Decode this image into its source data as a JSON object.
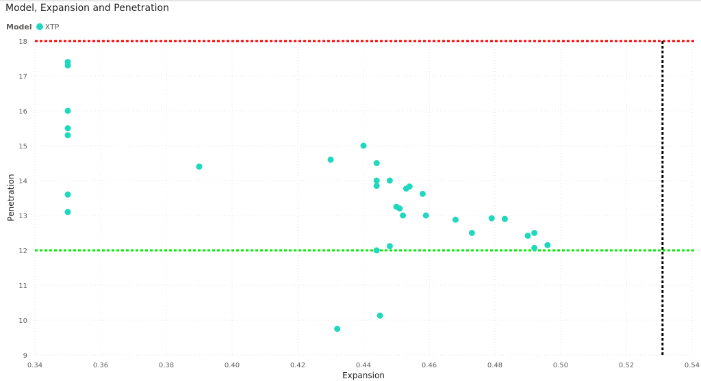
{
  "chart_data": {
    "type": "scatter",
    "title": "Model, Expansion and Penetration",
    "xlabel": "Expansion",
    "ylabel": "Penetration",
    "xlim": [
      0.34,
      0.54
    ],
    "ylim": [
      9,
      18
    ],
    "x_ticks": [
      "0.34",
      "0.36",
      "0.38",
      "0.40",
      "0.42",
      "0.44",
      "0.46",
      "0.48",
      "0.50",
      "0.52",
      "0.54"
    ],
    "y_ticks": [
      "9",
      "10",
      "11",
      "12",
      "13",
      "14",
      "15",
      "16",
      "17",
      "18"
    ],
    "legend": {
      "title": "Model",
      "entries": [
        "XTP"
      ],
      "placement": "top-left"
    },
    "grid": true,
    "series": [
      {
        "name": "XTP",
        "color": "#1fd8be",
        "points": [
          [
            0.35,
            17.4
          ],
          [
            0.35,
            17.3
          ],
          [
            0.35,
            16.0
          ],
          [
            0.35,
            15.5
          ],
          [
            0.35,
            15.3
          ],
          [
            0.35,
            13.6
          ],
          [
            0.35,
            13.1
          ],
          [
            0.39,
            14.4
          ],
          [
            0.43,
            14.6
          ],
          [
            0.432,
            9.75
          ],
          [
            0.44,
            15.0
          ],
          [
            0.444,
            14.5
          ],
          [
            0.444,
            14.0
          ],
          [
            0.444,
            13.85
          ],
          [
            0.444,
            12.0
          ],
          [
            0.445,
            10.13
          ],
          [
            0.448,
            14.0
          ],
          [
            0.448,
            12.12
          ],
          [
            0.45,
            13.25
          ],
          [
            0.451,
            13.2
          ],
          [
            0.452,
            13.0
          ],
          [
            0.453,
            13.77
          ],
          [
            0.454,
            13.83
          ],
          [
            0.458,
            13.62
          ],
          [
            0.459,
            13.0
          ],
          [
            0.468,
            12.88
          ],
          [
            0.473,
            12.5
          ],
          [
            0.479,
            12.92
          ],
          [
            0.483,
            12.9
          ],
          [
            0.49,
            12.42
          ],
          [
            0.492,
            12.5
          ],
          [
            0.492,
            12.07
          ],
          [
            0.496,
            12.15
          ]
        ]
      }
    ],
    "reference_lines": [
      {
        "orientation": "horizontal",
        "value": 18,
        "color": "#ff0000",
        "style": "dotted"
      },
      {
        "orientation": "horizontal",
        "value": 12,
        "color": "#00ee00",
        "style": "dotted"
      },
      {
        "orientation": "vertical",
        "value": 0.531,
        "color": "#000000",
        "style": "dotted"
      }
    ]
  }
}
